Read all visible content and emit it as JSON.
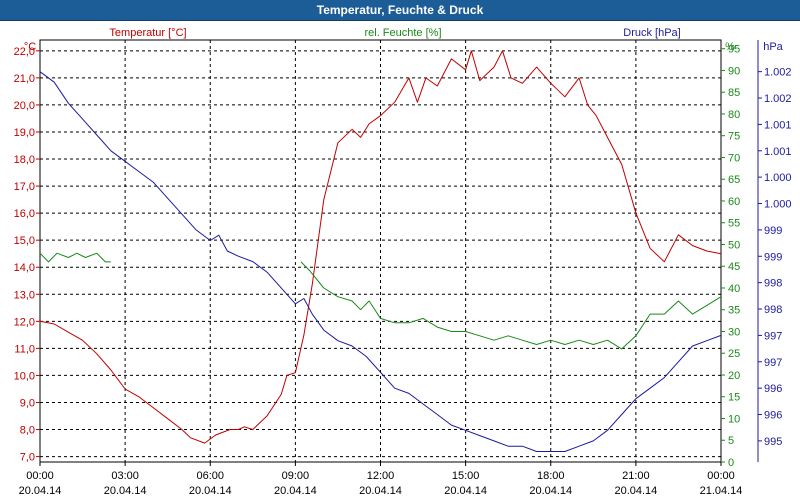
{
  "title": "Temperatur, Feuchte & Druck",
  "colors": {
    "temperature": "#c00000",
    "humidity": "#1a8a1a",
    "pressure": "#1b1b9f",
    "axisText": "#000000"
  },
  "chart_data": {
    "type": "line",
    "x_unit": "hours since 20.04.14 00:00",
    "xlim": [
      0,
      24
    ],
    "x_ticks": [
      {
        "x": 0,
        "time": "00:00",
        "date": "20.04.14"
      },
      {
        "x": 3,
        "time": "03:00",
        "date": "20.04.14"
      },
      {
        "x": 6,
        "time": "06:00",
        "date": "20.04.14"
      },
      {
        "x": 9,
        "time": "09:00",
        "date": "20.04.14"
      },
      {
        "x": 12,
        "time": "12:00",
        "date": "20.04.14"
      },
      {
        "x": 15,
        "time": "15:00",
        "date": "20.04.14"
      },
      {
        "x": 18,
        "time": "18:00",
        "date": "20.04.14"
      },
      {
        "x": 21,
        "time": "21:00",
        "date": "20.04.14"
      },
      {
        "x": 24,
        "time": "00:00",
        "date": "21.04.14"
      }
    ],
    "axes": {
      "temperature": {
        "label": "Temperatur [°C]",
        "unit": "°C",
        "ylim": [
          6.8,
          22.4
        ],
        "ticks": [
          "7,0",
          "8,0",
          "9,0",
          "10,0",
          "11,0",
          "12,0",
          "13,0",
          "14,0",
          "15,0",
          "16,0",
          "17,0",
          "18,0",
          "19,0",
          "20,0",
          "21,0",
          "22,0"
        ]
      },
      "humidity": {
        "label": "rel. Feuchte [%]",
        "unit": "%",
        "ylim": [
          0,
          97
        ],
        "ticks": [
          "0",
          "5",
          "10",
          "15",
          "20",
          "25",
          "30",
          "35",
          "40",
          "45",
          "50",
          "55",
          "60",
          "65",
          "70",
          "75",
          "80",
          "85",
          "90",
          "95"
        ]
      },
      "pressure": {
        "label": "Druck [hPa]",
        "unit": "hPa",
        "ylim": [
          994.6,
          1002.6
        ],
        "ticks": [
          "995",
          "996",
          "996",
          "997",
          "997",
          "998",
          "998",
          "999",
          "999",
          "1.000",
          "1.000",
          "1.001",
          "1.001",
          "1.002",
          "1.002"
        ]
      }
    },
    "series": [
      {
        "name": "Temperatur [°C]",
        "axis": "temperature",
        "x": [
          0,
          0.5,
          1,
          1.5,
          2,
          2.5,
          3,
          3.5,
          4,
          4.5,
          5,
          5.3,
          5.8,
          6.2,
          6.7,
          7,
          7.2,
          7.5,
          8,
          8.5,
          8.7,
          9,
          9.3,
          9.6,
          10,
          10.5,
          11,
          11.3,
          11.6,
          12,
          12.5,
          13,
          13.3,
          13.6,
          14,
          14.5,
          15,
          15.2,
          15.5,
          16,
          16.3,
          16.6,
          17,
          17.5,
          18,
          18.5,
          19,
          19.3,
          19.6,
          20,
          20.5,
          21,
          21.5,
          22,
          22.5,
          23,
          23.5,
          24
        ],
        "values": [
          12.0,
          11.9,
          11.6,
          11.3,
          10.8,
          10.2,
          9.5,
          9.2,
          8.8,
          8.4,
          8.0,
          7.7,
          7.5,
          7.8,
          8.0,
          8.0,
          8.1,
          8.0,
          8.5,
          9.3,
          10.0,
          10.1,
          11.5,
          13.4,
          16.5,
          18.6,
          19.1,
          18.8,
          19.3,
          19.6,
          20.1,
          21.0,
          20.1,
          21.0,
          20.7,
          21.7,
          21.3,
          22.0,
          20.9,
          21.4,
          22.0,
          21.0,
          20.8,
          21.4,
          20.8,
          20.3,
          21.0,
          20.0,
          19.6,
          18.8,
          17.8,
          16.0,
          14.7,
          14.2,
          15.2,
          14.8,
          14.6,
          14.5
        ]
      },
      {
        "name": "rel. Feuchte [%]",
        "axis": "humidity",
        "x": [
          0,
          0.3,
          0.6,
          1,
          1.3,
          1.6,
          2,
          2.3,
          2.5
        ],
        "values": [
          48,
          46,
          48,
          47,
          48,
          47,
          48,
          46,
          46
        ]
      },
      {
        "name": "rel. Feuchte [%]",
        "axis": "humidity",
        "x": [
          9.2,
          9.5,
          10,
          10.5,
          11,
          11.3,
          11.6,
          12,
          12.5,
          13,
          13.5,
          14,
          14.5,
          15,
          15.5,
          16,
          16.5,
          17,
          17.5,
          18,
          18.5,
          19,
          19.5,
          20,
          20.5,
          21,
          21.5,
          22,
          22.5,
          23,
          23.5,
          24
        ],
        "values": [
          46,
          44,
          40,
          38,
          37,
          35,
          37,
          33,
          32,
          32,
          33,
          31,
          30,
          30,
          29,
          28,
          29,
          28,
          27,
          28,
          27,
          28,
          27,
          28,
          26,
          29,
          34,
          34,
          37,
          34,
          36,
          38
        ]
      },
      {
        "name": "Druck [hPa]",
        "axis": "pressure",
        "x": [
          0,
          0.5,
          1,
          1.5,
          2,
          2.5,
          3,
          3.5,
          4,
          4.5,
          5,
          5.5,
          6,
          6.3,
          6.6,
          7,
          7.5,
          8,
          8.5,
          9,
          9.3,
          9.6,
          10,
          10.5,
          11,
          11.5,
          12,
          12.5,
          13,
          13.5,
          14,
          14.5,
          15,
          15.5,
          16,
          16.5,
          17,
          17.5,
          18,
          18.5,
          19,
          19.5,
          20,
          20.5,
          21,
          21.5,
          22,
          22.5,
          23,
          23.5,
          24
        ],
        "values": [
          1002.0,
          1001.8,
          1001.4,
          1001.1,
          1000.8,
          1000.5,
          1000.3,
          1000.1,
          999.9,
          999.6,
          999.3,
          999.0,
          998.8,
          998.9,
          998.6,
          998.5,
          998.4,
          998.2,
          997.9,
          997.6,
          997.7,
          997.4,
          997.1,
          996.9,
          996.8,
          996.6,
          996.3,
          996.0,
          995.9,
          995.7,
          995.5,
          995.3,
          995.2,
          995.1,
          995.0,
          994.9,
          994.9,
          994.8,
          994.8,
          994.8,
          994.9,
          995.0,
          995.2,
          995.5,
          995.8,
          996.0,
          996.2,
          996.5,
          996.8,
          996.9,
          997.0
        ]
      }
    ]
  }
}
